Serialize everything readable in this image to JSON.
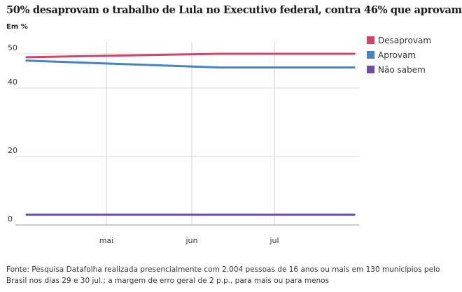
{
  "chart_data": {
    "type": "line",
    "title": "50% desaprovam o trabalho de Lula no Executivo federal, contra 46% que aprovam",
    "subtitle": "Em %",
    "x": [
      "2025-04-02",
      "2025-06-11",
      "2025-07-30"
    ],
    "x_ticks": [
      {
        "date": "2025-05-01",
        "label": "mai"
      },
      {
        "date": "2025-06-01",
        "label": "jun"
      },
      {
        "date": "2025-07-01",
        "label": "jul"
      }
    ],
    "y_ticks": [
      0,
      20,
      40,
      50
    ],
    "ylim": [
      0,
      50
    ],
    "grid": true,
    "legend_position": "right",
    "series": [
      {
        "name": "Desaprovam",
        "color": "#d1456a",
        "values": [
          49,
          50,
          50
        ]
      },
      {
        "name": "Aprovam",
        "color": "#4384c4",
        "values": [
          48,
          46,
          46
        ]
      },
      {
        "name": "Não sabem",
        "color": "#6a4fa3",
        "values": [
          3,
          3,
          3
        ]
      }
    ]
  },
  "footer": {
    "source": "Fonte: Pesquisa Datafolha realizada presencialmente com 2.004 pessoas de 16 anos ou mais em 130 municípios pelo Brasil nos dias 29 e 30 jul.; a margem de erro geral de 2 p.p., para mais ou para menos"
  }
}
